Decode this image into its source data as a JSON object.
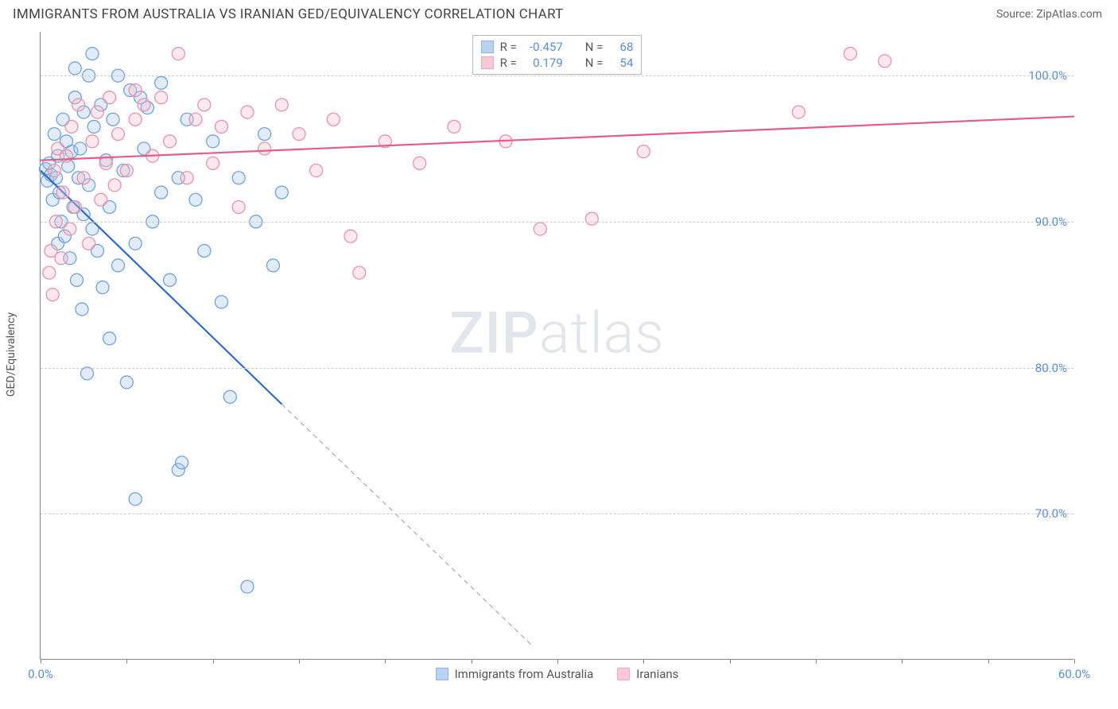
{
  "header": {
    "title": "IMMIGRANTS FROM AUSTRALIA VS IRANIAN GED/EQUIVALENCY CORRELATION CHART",
    "source": "Source: ZipAtlas.com"
  },
  "chart": {
    "type": "scatter",
    "ylabel": "GED/Equivalency",
    "watermark": {
      "part1": "ZIP",
      "part2": "atlas"
    },
    "background_color": "#ffffff",
    "grid_color": "#cccccc",
    "axis_color": "#888888",
    "tick_label_color": "#5b8dd6",
    "xlim": [
      0,
      60
    ],
    "ylim": [
      60,
      103
    ],
    "xticks": [
      0,
      5,
      10,
      15,
      20,
      25,
      30,
      35,
      40,
      45,
      50,
      55,
      60
    ],
    "xticks_labeled": [
      0,
      60
    ],
    "yticks": [
      70,
      80,
      90,
      100
    ],
    "ytick_labels": [
      "70.0%",
      "80.0%",
      "90.0%",
      "100.0%"
    ],
    "x_label_format": "{v}.0%",
    "marker_radius": 8,
    "marker_stroke_width": 1.3,
    "marker_fill_opacity": 0.35,
    "line_width": 2.2,
    "series": [
      {
        "id": "australia",
        "label": "Immigrants from Australia",
        "color_stroke": "#6fa3e0",
        "color_fill": "#a8c8ec",
        "line_color": "#2d6bd1",
        "R": "-0.457",
        "N": "68",
        "regression": {
          "x1": 0,
          "y1": 93.5,
          "x2": 14,
          "y2": 77.5,
          "extrap_x2": 28.5,
          "extrap_y2": 61
        },
        "points": [
          [
            0.3,
            93.6
          ],
          [
            0.4,
            92.8
          ],
          [
            0.5,
            94.0
          ],
          [
            0.6,
            93.2
          ],
          [
            0.7,
            91.5
          ],
          [
            0.8,
            96.0
          ],
          [
            0.9,
            93.0
          ],
          [
            1.0,
            88.5
          ],
          [
            1.0,
            94.5
          ],
          [
            1.1,
            92.0
          ],
          [
            1.2,
            90.0
          ],
          [
            1.3,
            97.0
          ],
          [
            1.4,
            89.0
          ],
          [
            1.5,
            95.5
          ],
          [
            1.6,
            93.8
          ],
          [
            1.7,
            87.5
          ],
          [
            1.8,
            94.8
          ],
          [
            1.9,
            91.0
          ],
          [
            2.0,
            100.5
          ],
          [
            2.0,
            98.5
          ],
          [
            2.1,
            86.0
          ],
          [
            2.2,
            93.0
          ],
          [
            2.3,
            95.0
          ],
          [
            2.4,
            84.0
          ],
          [
            2.5,
            97.5
          ],
          [
            2.5,
            90.5
          ],
          [
            2.7,
            79.6
          ],
          [
            2.8,
            100.0
          ],
          [
            2.8,
            92.5
          ],
          [
            3.0,
            89.5
          ],
          [
            3.0,
            101.5
          ],
          [
            3.1,
            96.5
          ],
          [
            3.3,
            88.0
          ],
          [
            3.5,
            98.0
          ],
          [
            3.6,
            85.5
          ],
          [
            3.8,
            94.2
          ],
          [
            4.0,
            82.0
          ],
          [
            4.0,
            91.0
          ],
          [
            4.2,
            97.0
          ],
          [
            4.5,
            100.0
          ],
          [
            4.5,
            87.0
          ],
          [
            4.8,
            93.5
          ],
          [
            5.0,
            79.0
          ],
          [
            5.2,
            99.0
          ],
          [
            5.5,
            88.5
          ],
          [
            5.5,
            71.0
          ],
          [
            5.8,
            98.5
          ],
          [
            6.0,
            95.0
          ],
          [
            6.2,
            97.8
          ],
          [
            6.5,
            90.0
          ],
          [
            7.0,
            92.0
          ],
          [
            7.0,
            99.5
          ],
          [
            7.5,
            86.0
          ],
          [
            8.0,
            93.0
          ],
          [
            8.0,
            73.0
          ],
          [
            8.2,
            73.5
          ],
          [
            8.5,
            97.0
          ],
          [
            9.0,
            91.5
          ],
          [
            9.5,
            88.0
          ],
          [
            10.0,
            95.5
          ],
          [
            10.5,
            84.5
          ],
          [
            11.0,
            78.0
          ],
          [
            11.5,
            93.0
          ],
          [
            12.0,
            65.0
          ],
          [
            12.5,
            90.0
          ],
          [
            13.0,
            96.0
          ],
          [
            13.5,
            87.0
          ],
          [
            14.0,
            92.0
          ]
        ]
      },
      {
        "id": "iranian",
        "label": "Iranians",
        "color_stroke": "#e793ab",
        "color_fill": "#f5bccb",
        "line_color": "#e75a8a",
        "R": "0.179",
        "N": "54",
        "regression": {
          "x1": 0,
          "y1": 94.2,
          "x2": 60,
          "y2": 97.2
        },
        "points": [
          [
            0.5,
            86.5
          ],
          [
            0.6,
            88.0
          ],
          [
            0.7,
            85.0
          ],
          [
            0.8,
            93.5
          ],
          [
            0.9,
            90.0
          ],
          [
            1.0,
            95.0
          ],
          [
            1.2,
            87.5
          ],
          [
            1.3,
            92.0
          ],
          [
            1.5,
            94.5
          ],
          [
            1.7,
            89.5
          ],
          [
            1.8,
            96.5
          ],
          [
            2.0,
            91.0
          ],
          [
            2.2,
            98.0
          ],
          [
            2.5,
            93.0
          ],
          [
            2.8,
            88.5
          ],
          [
            3.0,
            95.5
          ],
          [
            3.3,
            97.5
          ],
          [
            3.5,
            91.5
          ],
          [
            3.8,
            94.0
          ],
          [
            4.0,
            98.5
          ],
          [
            4.3,
            92.5
          ],
          [
            4.5,
            96.0
          ],
          [
            5.0,
            93.5
          ],
          [
            5.5,
            97.0
          ],
          [
            5.5,
            99.0
          ],
          [
            6.0,
            98.0
          ],
          [
            6.5,
            94.5
          ],
          [
            7.0,
            98.5
          ],
          [
            7.5,
            95.5
          ],
          [
            8.0,
            101.5
          ],
          [
            8.5,
            93.0
          ],
          [
            9.0,
            97.0
          ],
          [
            9.5,
            98.0
          ],
          [
            10.0,
            94.0
          ],
          [
            10.5,
            96.5
          ],
          [
            11.5,
            91.0
          ],
          [
            12.0,
            97.5
          ],
          [
            13.0,
            95.0
          ],
          [
            14.0,
            98.0
          ],
          [
            15.0,
            96.0
          ],
          [
            16.0,
            93.5
          ],
          [
            17.0,
            97.0
          ],
          [
            18.0,
            89.0
          ],
          [
            18.5,
            86.5
          ],
          [
            20.0,
            95.5
          ],
          [
            22.0,
            94.0
          ],
          [
            24.0,
            96.5
          ],
          [
            27.0,
            95.5
          ],
          [
            29.0,
            89.5
          ],
          [
            32.0,
            90.2
          ],
          [
            35.0,
            94.8
          ],
          [
            47.0,
            101.5
          ],
          [
            49.0,
            101.0
          ],
          [
            44.0,
            97.5
          ]
        ]
      }
    ],
    "legend_top": {
      "r_label": "R =",
      "n_label": "N ="
    },
    "bottom_legend_items": [
      {
        "series": "australia"
      },
      {
        "series": "iranian"
      }
    ]
  }
}
